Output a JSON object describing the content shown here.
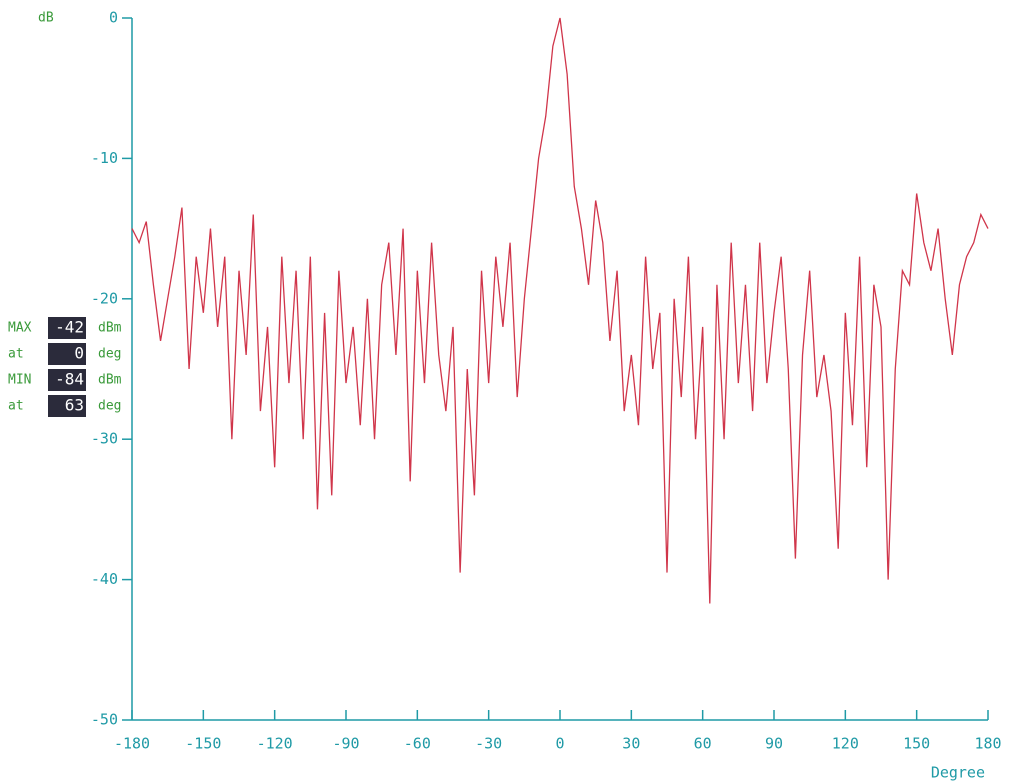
{
  "chart_data": {
    "type": "line",
    "y_label": "dB",
    "x_label": "Degree",
    "xlim": [
      -180,
      180
    ],
    "ylim": [
      -50,
      0
    ],
    "xticks": [
      -180,
      -150,
      -120,
      -90,
      -60,
      -30,
      0,
      30,
      60,
      90,
      120,
      150,
      180
    ],
    "yticks": [
      0,
      -10,
      -20,
      -30,
      -40,
      -50
    ],
    "axis_color": "#1f9aa6",
    "x": [
      -180,
      -177,
      -174,
      -171,
      -168,
      -165,
      -162,
      -159,
      -156,
      -153,
      -150,
      -147,
      -144,
      -141,
      -138,
      -135,
      -132,
      -129,
      -126,
      -123,
      -120,
      -117,
      -114,
      -111,
      -108,
      -105,
      -102,
      -99,
      -96,
      -93,
      -90,
      -87,
      -84,
      -81,
      -78,
      -75,
      -72,
      -69,
      -66,
      -63,
      -60,
      -57,
      -54,
      -51,
      -48,
      -45,
      -42,
      -39,
      -36,
      -33,
      -30,
      -27,
      -24,
      -21,
      -18,
      -15,
      -12,
      -9,
      -6,
      -3,
      0,
      3,
      6,
      9,
      12,
      15,
      18,
      21,
      24,
      27,
      30,
      33,
      36,
      39,
      42,
      45,
      48,
      51,
      54,
      57,
      60,
      63,
      66,
      69,
      72,
      75,
      78,
      81,
      84,
      87,
      90,
      93,
      96,
      99,
      102,
      105,
      108,
      111,
      114,
      117,
      120,
      123,
      126,
      129,
      132,
      135,
      138,
      141,
      144,
      147,
      150,
      153,
      156,
      159,
      162,
      165,
      168,
      171,
      174,
      177,
      180
    ],
    "series": [
      {
        "color": "#d0354a",
        "values": [
          -15,
          -16,
          -14.5,
          -19,
          -23,
          -20,
          -17,
          -13.5,
          -25,
          -17,
          -21,
          -15,
          -22,
          -17,
          -30,
          -18,
          -24,
          -14,
          -28,
          -22,
          -32,
          -17,
          -26,
          -18,
          -30,
          -17,
          -35,
          -21,
          -34,
          -18,
          -26,
          -22,
          -29,
          -20,
          -30,
          -19,
          -16,
          -24,
          -15,
          -33,
          -18,
          -26,
          -16,
          -24,
          -28,
          -22,
          -39.5,
          -25,
          -34,
          -18,
          -26,
          -17,
          -22,
          -16,
          -27,
          -20,
          -15,
          -10,
          -7,
          -2,
          0,
          -4,
          -12,
          -15,
          -19,
          -13,
          -16,
          -23,
          -18,
          -28,
          -24,
          -29,
          -17,
          -25,
          -21,
          -39.5,
          -20,
          -27,
          -17,
          -30,
          -22,
          -41.7,
          -19,
          -30,
          -16,
          -26,
          -19,
          -28,
          -16,
          -26,
          -21,
          -17,
          -25,
          -38.5,
          -24,
          -18,
          -27,
          -24,
          -28,
          -37.8,
          -21,
          -29,
          -17,
          -32,
          -19,
          -22,
          -40,
          -25,
          -18,
          -19,
          -12.5,
          -16,
          -18,
          -15,
          -20,
          -24,
          -19,
          -17,
          -16,
          -14,
          -15
        ]
      }
    ],
    "readouts": [
      {
        "label": "MAX",
        "value": -42,
        "unit": "dBm"
      },
      {
        "label": "at",
        "value": 0,
        "unit": "deg"
      },
      {
        "label": "MIN",
        "value": -84,
        "unit": "dBm"
      },
      {
        "label": "at",
        "value": 63,
        "unit": "deg"
      }
    ]
  }
}
